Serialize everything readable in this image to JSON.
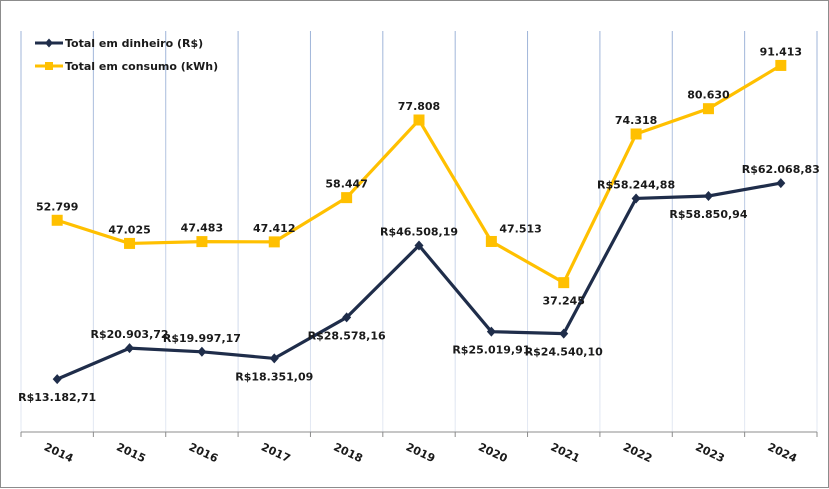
{
  "chart_data": {
    "type": "line",
    "title": "",
    "xlabel": "",
    "ylabel": "",
    "categories": [
      "2014",
      "2015",
      "2016",
      "2017",
      "2018",
      "2019",
      "2020",
      "2021",
      "2022",
      "2023",
      "2024"
    ],
    "ylim": [
      0,
      100000
    ],
    "grid": "vertical",
    "legend_position": "top-left",
    "series": [
      {
        "name": "Total em dinheiro (R$)",
        "color": "#1f2d4a",
        "marker": "diamond",
        "values": [
          13182.71,
          20903.72,
          19997.17,
          18351.09,
          28578.16,
          46508.19,
          25019.91,
          24540.1,
          58244.88,
          58850.94,
          62068.83
        ],
        "labels": [
          "R$13.182,71",
          "R$20.903,72",
          "R$19.997,17",
          "R$18.351,09",
          "R$28.578,16",
          "R$46.508,19",
          "R$25.019,91",
          "R$24.540,10",
          "R$58.244,88",
          "R$58.850,94",
          "R$62.068,83"
        ],
        "label_positions": [
          "below",
          "above",
          "above",
          "below",
          "below",
          "above",
          "below",
          "below",
          "above",
          "below",
          "above"
        ]
      },
      {
        "name": "Total em consumo (kWh)",
        "color": "#ffc000",
        "marker": "square",
        "values": [
          52799,
          47025,
          47483,
          47412,
          58447,
          77808,
          47513,
          37245,
          74318,
          80630,
          91413
        ],
        "labels": [
          "52.799",
          "47.025",
          "47.483",
          "47.412",
          "58.447",
          "77.808",
          "47.513",
          "37.245",
          "74.318",
          "80.630",
          "91.413"
        ],
        "label_positions": [
          "above",
          "above",
          "above",
          "above",
          "above",
          "above",
          "above-right",
          "below",
          "above",
          "above",
          "above"
        ]
      }
    ]
  }
}
